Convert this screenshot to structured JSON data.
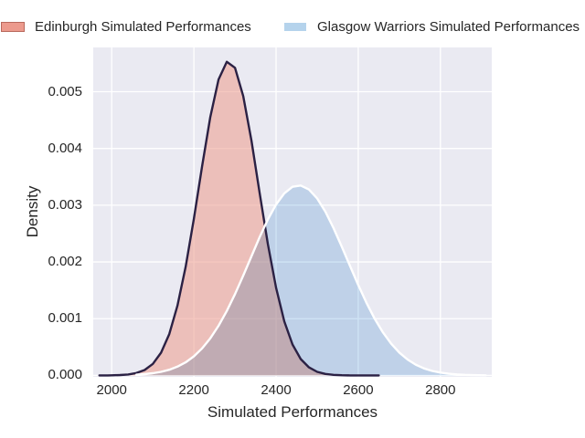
{
  "figure": {
    "background": "#ffffff"
  },
  "legend": {
    "position": "top",
    "items": [
      {
        "label": "Edinburgh Simulated Performances",
        "swatch_fill": "#ec9a8d",
        "swatch_border": "#b9695d"
      },
      {
        "label": "Glasgow Warriors Simulated Performances",
        "swatch_fill": "#b5d3ec",
        "swatch_border": "#ffffff"
      }
    ]
  },
  "axes": {
    "xlabel": "Simulated Performances",
    "ylabel": "Density",
    "x_ticks": [
      2000,
      2200,
      2400,
      2600,
      2800
    ],
    "y_ticks": [
      "0.000",
      "0.001",
      "0.002",
      "0.003",
      "0.004",
      "0.005"
    ],
    "xlim": [
      1955,
      2925
    ],
    "ylim": [
      -2.5e-05,
      0.00578
    ],
    "plot_bg": "#eaeaf2",
    "grid_color": "#ffffff",
    "text_color": "#262626",
    "grid": true
  },
  "chart_data": {
    "type": "area",
    "subtype": "kde-density",
    "title": "",
    "xlabel": "Simulated Performances",
    "ylabel": "Density",
    "legend_position": "top outside",
    "series": [
      {
        "name": "Edinburgh Simulated Performances",
        "line_color": "#2b2144",
        "fill_color": "#ec9a8d",
        "fill_opacity": 0.55,
        "blend": "normal",
        "peak_x": 2285,
        "peak_density": 0.00553,
        "x": [
          1970,
          1990,
          2000,
          2020,
          2040,
          2060,
          2080,
          2100,
          2120,
          2140,
          2160,
          2180,
          2200,
          2220,
          2240,
          2260,
          2280,
          2300,
          2320,
          2340,
          2360,
          2380,
          2400,
          2420,
          2440,
          2460,
          2480,
          2500,
          2520,
          2540,
          2560,
          2580,
          2600,
          2620,
          2650
        ],
        "density": [
          5e-07,
          1.5e-06,
          2.2e-06,
          6.4e-06,
          1.69e-05,
          4.19e-05,
          9.63e-05,
          0.000204,
          0.000401,
          0.000729,
          0.001228,
          0.001914,
          0.00276,
          0.003686,
          0.004557,
          0.005216,
          0.005527,
          0.005421,
          0.004923,
          0.004138,
          0.00322,
          0.00232,
          0.001547,
          0.000955,
          0.000546,
          0.000289,
          0.000142,
          6.42e-05,
          2.69e-05,
          1.04e-05,
          3.8e-06,
          1.3e-06,
          5e-07,
          2e-07,
          0
        ]
      },
      {
        "name": "Glasgow Warriors Simulated Performances",
        "line_color": "#ffffff",
        "fill_color": "#a1c9ec",
        "fill_opacity": 0.5,
        "blend": "multiply",
        "peak_x": 2455,
        "peak_density": 0.00335,
        "x": [
          2060,
          2080,
          2100,
          2120,
          2140,
          2160,
          2180,
          2200,
          2220,
          2240,
          2260,
          2280,
          2300,
          2320,
          2340,
          2360,
          2380,
          2400,
          2420,
          2440,
          2460,
          2480,
          2500,
          2520,
          2540,
          2560,
          2580,
          2600,
          2620,
          2640,
          2660,
          2680,
          2700,
          2720,
          2740,
          2760,
          2780,
          2800,
          2820,
          2840,
          2860,
          2880,
          2910
        ],
        "density": [
          1.35e-05,
          2.34e-05,
          3.91e-05,
          6.37e-05,
          0.000101,
          0.000155,
          0.00023,
          0.000337,
          0.000477,
          0.000655,
          0.000875,
          0.001136,
          0.001434,
          0.00176,
          0.0021,
          0.002436,
          0.002747,
          0.003011,
          0.003208,
          0.003324,
          0.003347,
          0.003277,
          0.003119,
          0.002886,
          0.002596,
          0.00227,
          0.00193,
          0.001595,
          0.001281,
          0.001,
          0.00076,
          0.000561,
          0.000402,
          0.000281,
          0.00019,
          0.000125,
          8e-05,
          5e-05,
          3e-05,
          1.8e-05,
          1e-05,
          6e-06,
          2e-06
        ]
      }
    ]
  }
}
